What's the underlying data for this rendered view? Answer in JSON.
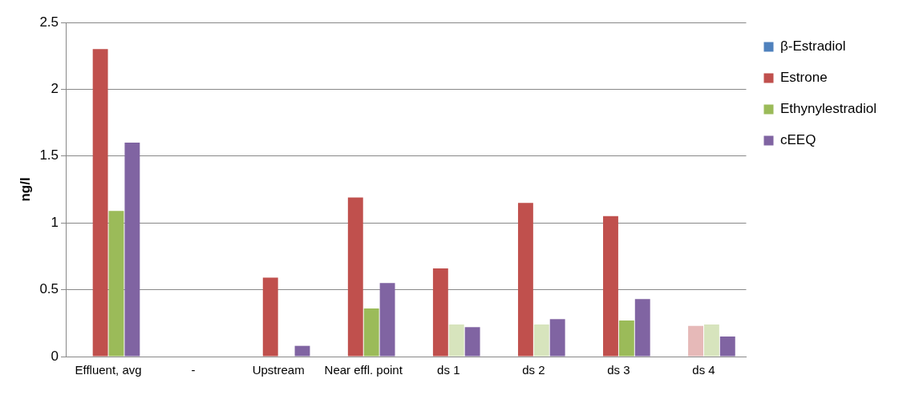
{
  "chart_data": {
    "type": "bar",
    "ylabel": "ng/l",
    "categories": [
      "Effluent, avg",
      "-",
      "Upstream",
      "Near effl. point",
      "ds 1",
      "ds 2",
      "ds 3",
      "ds 4"
    ],
    "series": [
      {
        "name": "β-Estradiol",
        "color": "#4f81bd",
        "values": [
          null,
          null,
          null,
          null,
          null,
          null,
          null,
          null
        ]
      },
      {
        "name": "Estrone",
        "color": "#c0504d",
        "colors": [
          "#c0504d",
          "#c0504d",
          "#c0504d",
          "#c0504d",
          "#c0504d",
          "#c0504d",
          "#c0504d",
          "#e6b9b8"
        ],
        "values": [
          2.3,
          null,
          0.59,
          1.19,
          0.66,
          1.15,
          1.05,
          0.23
        ]
      },
      {
        "name": "Ethynylestradiol",
        "color": "#9bbb59",
        "colors": [
          "#9bbb59",
          "#9bbb59",
          "#9bbb59",
          "#9bbb59",
          "#d7e4bd",
          "#d7e4bd",
          "#9bbb59",
          "#d7e4bd"
        ],
        "values": [
          1.09,
          null,
          null,
          0.36,
          0.24,
          0.24,
          0.27,
          0.24
        ]
      },
      {
        "name": "cEEQ",
        "color": "#8064a2",
        "values": [
          1.6,
          null,
          0.08,
          0.55,
          0.22,
          0.28,
          0.43,
          0.15
        ]
      }
    ],
    "ylim": [
      0,
      2.5
    ],
    "yticks": [
      0,
      0.5,
      1,
      1.5,
      2,
      2.5
    ],
    "grid": "y",
    "legend": "right"
  }
}
